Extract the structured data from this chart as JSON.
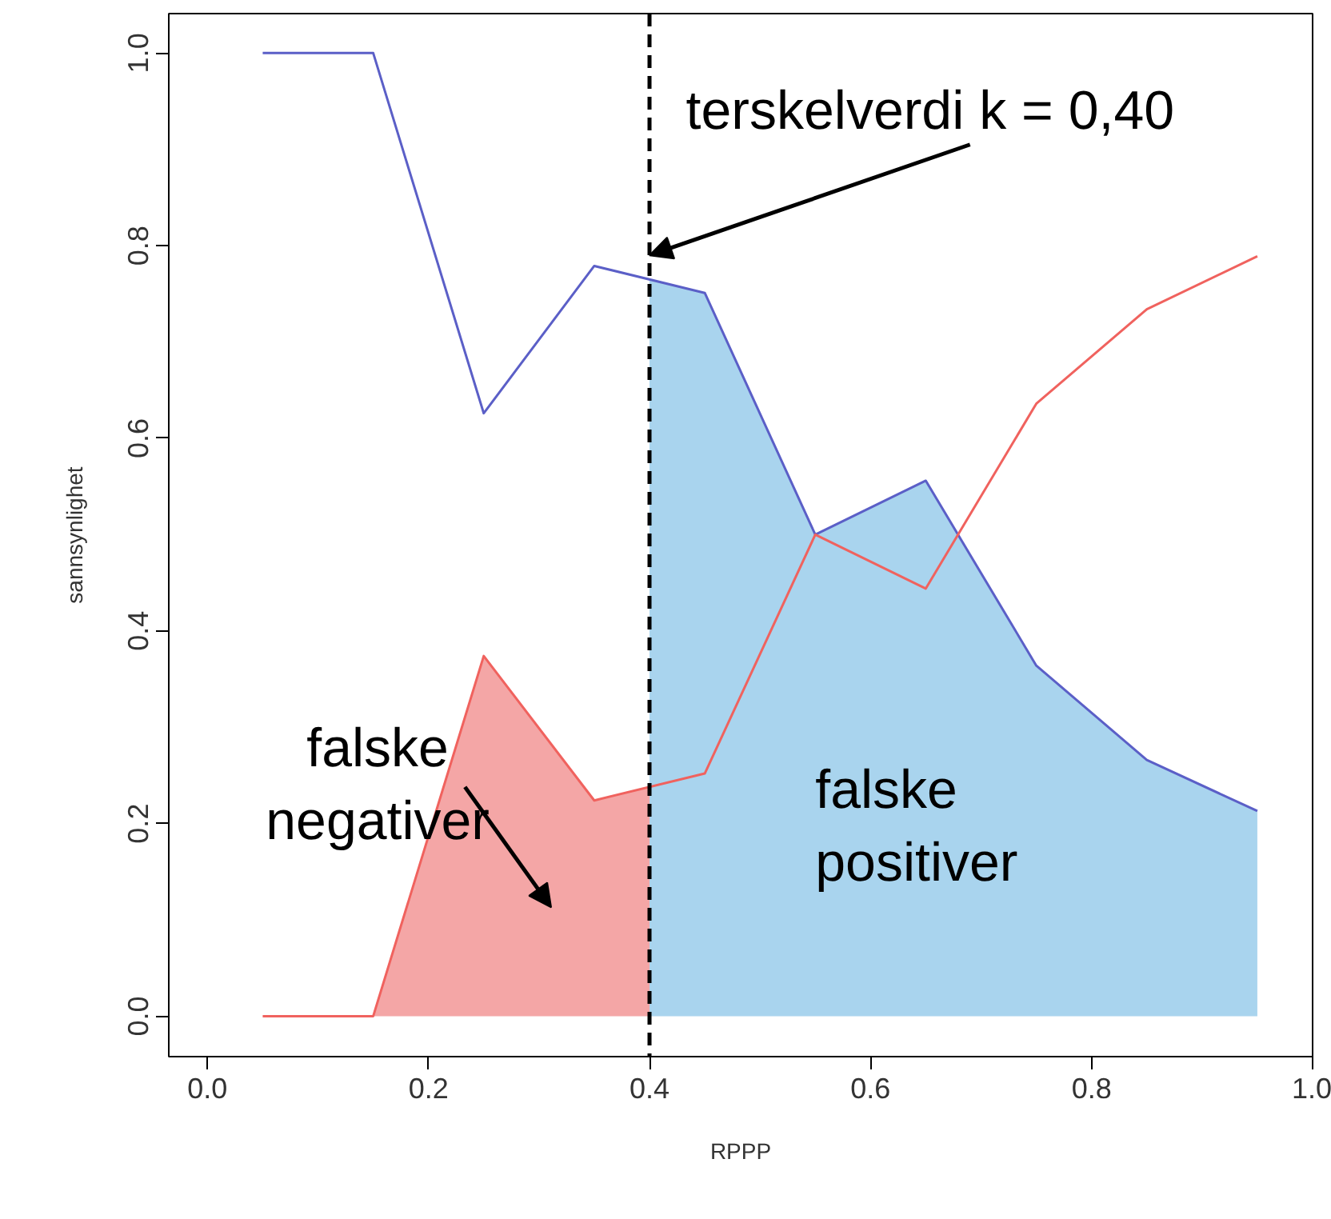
{
  "chart_data": {
    "type": "line",
    "xlabel": "RPPP",
    "ylabel": "sannsynlighet",
    "xlim": [
      -0.035,
      1.0
    ],
    "ylim": [
      -0.042,
      1.041
    ],
    "xticks": [
      {
        "value": 0,
        "label": "0.0"
      },
      {
        "value": 0.2,
        "label": "0.2"
      },
      {
        "value": 0.4,
        "label": "0.4"
      },
      {
        "value": 0.6,
        "label": "0.6"
      },
      {
        "value": 0.8,
        "label": "0.8"
      },
      {
        "value": 1,
        "label": "1.0"
      }
    ],
    "yticks": [
      {
        "value": 0,
        "label": "0.0"
      },
      {
        "value": 0.2,
        "label": "0.2"
      },
      {
        "value": 0.4,
        "label": "0.4"
      },
      {
        "value": 0.6,
        "label": "0.6"
      },
      {
        "value": 0.8,
        "label": "0.8"
      },
      {
        "value": 1,
        "label": "1.0"
      }
    ],
    "grid": false,
    "series": [
      {
        "type": "area",
        "color": "#f4a6a6",
        "x": [
          0.05,
          0.15,
          0.25,
          0.35,
          0.4
        ],
        "values": [
          0,
          0,
          0.374,
          0.224,
          0.238
        ]
      },
      {
        "type": "area",
        "color": "#a9d4ee",
        "x": [
          0.4,
          0.45,
          0.55,
          0.65,
          0.75,
          0.85,
          0.95
        ],
        "values": [
          0.765,
          0.751,
          0.5,
          0.556,
          0.364,
          0.266,
          0.213
        ]
      },
      {
        "color": "#5b5fc7",
        "x": [
          0.05,
          0.15,
          0.25,
          0.35,
          0.45,
          0.55,
          0.65,
          0.75,
          0.85,
          0.95
        ],
        "values": [
          1,
          1,
          0.626,
          0.779,
          0.751,
          0.5,
          0.556,
          0.364,
          0.266,
          0.213
        ]
      },
      {
        "color": "#f0625e",
        "x": [
          0.05,
          0.15,
          0.25,
          0.35,
          0.45,
          0.55,
          0.65,
          0.75,
          0.85,
          0.95
        ],
        "values": [
          0,
          0,
          0.374,
          0.224,
          0.252,
          0.5,
          0.444,
          0.636,
          0.734,
          0.789
        ]
      }
    ],
    "ref_lines": [
      {
        "axis": "x",
        "value": 0.4,
        "color": "#000000",
        "line_style": "dashed"
      }
    ],
    "annotations": [
      {
        "text": "terskelverdi k = 0,40",
        "x": 0.4,
        "y": 0.79
      },
      "falske\nnegativer",
      "falske\npositiver"
    ]
  }
}
